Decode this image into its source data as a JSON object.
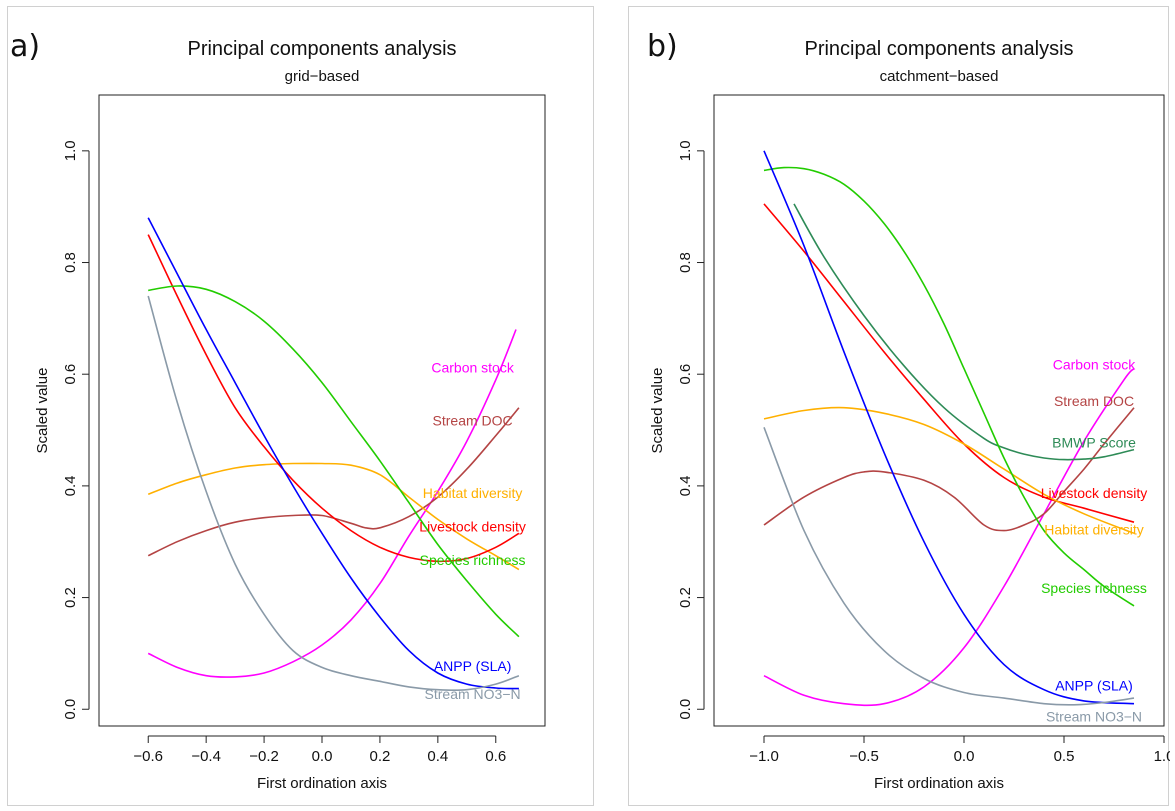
{
  "panels": [
    {
      "letter": "a)"
    },
    {
      "letter": "b)"
    }
  ],
  "chart_data": [
    {
      "type": "line",
      "title": "Principal components analysis",
      "subtitle": "grid−based",
      "xlabel": "First ordination axis",
      "ylabel": "Scaled value",
      "xlim": [
        -0.77,
        0.77
      ],
      "ylim": [
        -0.03,
        1.1
      ],
      "xticks": [
        -0.6,
        -0.4,
        -0.2,
        0.0,
        0.2,
        0.4,
        0.6
      ],
      "xtick_labels": [
        "−0.6",
        "−0.4",
        "−0.2",
        "0.0",
        "0.2",
        "0.4",
        "0.6"
      ],
      "yticks": [
        0.0,
        0.2,
        0.4,
        0.6,
        0.8,
        1.0
      ],
      "ytick_labels": [
        "0.0",
        "0.2",
        "0.4",
        "0.6",
        "0.8",
        "1.0"
      ],
      "series": [
        {
          "name": "Carbon stock",
          "color": "#ff00ff",
          "label_at": [
            0.52,
            0.61
          ],
          "x": [
            -0.6,
            -0.5,
            -0.4,
            -0.3,
            -0.2,
            -0.1,
            0.0,
            0.1,
            0.2,
            0.3,
            0.4,
            0.5,
            0.6,
            0.67
          ],
          "y": [
            0.1,
            0.075,
            0.06,
            0.058,
            0.065,
            0.085,
            0.115,
            0.16,
            0.225,
            0.31,
            0.39,
            0.48,
            0.59,
            0.68
          ]
        },
        {
          "name": "Stream DOC",
          "color": "#b44444",
          "label_at": [
            0.52,
            0.515
          ],
          "x": [
            -0.6,
            -0.5,
            -0.4,
            -0.3,
            -0.2,
            -0.1,
            0.0,
            0.1,
            0.15,
            0.2,
            0.3,
            0.4,
            0.5,
            0.6,
            0.68
          ],
          "y": [
            0.275,
            0.3,
            0.32,
            0.335,
            0.343,
            0.347,
            0.347,
            0.333,
            0.325,
            0.325,
            0.345,
            0.38,
            0.43,
            0.49,
            0.54
          ]
        },
        {
          "name": "Habitat diversity",
          "color": "#ffb000",
          "label_at": [
            0.52,
            0.385
          ],
          "x": [
            -0.6,
            -0.5,
            -0.4,
            -0.3,
            -0.2,
            -0.1,
            0.0,
            0.1,
            0.2,
            0.3,
            0.4,
            0.5,
            0.6,
            0.68
          ],
          "y": [
            0.385,
            0.405,
            0.42,
            0.432,
            0.438,
            0.44,
            0.44,
            0.437,
            0.42,
            0.38,
            0.34,
            0.305,
            0.275,
            0.25
          ]
        },
        {
          "name": "Livestock density",
          "color": "#ff0000",
          "label_at": [
            0.52,
            0.325
          ],
          "x": [
            -0.6,
            -0.5,
            -0.4,
            -0.3,
            -0.2,
            -0.1,
            0.0,
            0.1,
            0.2,
            0.3,
            0.4,
            0.5,
            0.6,
            0.68
          ],
          "y": [
            0.85,
            0.74,
            0.635,
            0.54,
            0.47,
            0.41,
            0.36,
            0.32,
            0.29,
            0.272,
            0.265,
            0.27,
            0.29,
            0.315
          ]
        },
        {
          "name": "Species richness",
          "color": "#22cc00",
          "label_at": [
            0.52,
            0.265
          ],
          "x": [
            -0.6,
            -0.5,
            -0.4,
            -0.3,
            -0.2,
            -0.1,
            0.0,
            0.1,
            0.2,
            0.3,
            0.4,
            0.5,
            0.6,
            0.68
          ],
          "y": [
            0.75,
            0.758,
            0.752,
            0.73,
            0.695,
            0.645,
            0.585,
            0.515,
            0.445,
            0.37,
            0.295,
            0.23,
            0.17,
            0.13
          ]
        },
        {
          "name": "ANPP (SLA)",
          "color": "#0000ff",
          "label_at": [
            0.52,
            0.075
          ],
          "x": [
            -0.6,
            -0.5,
            -0.4,
            -0.3,
            -0.2,
            -0.1,
            0.0,
            0.1,
            0.2,
            0.3,
            0.4,
            0.5,
            0.6,
            0.68
          ],
          "y": [
            0.88,
            0.78,
            0.68,
            0.585,
            0.49,
            0.4,
            0.315,
            0.235,
            0.165,
            0.105,
            0.065,
            0.045,
            0.038,
            0.037
          ]
        },
        {
          "name": "Stream NO3−N",
          "color": "#8a9aa8",
          "label_at": [
            0.52,
            0.025
          ],
          "x": [
            -0.6,
            -0.5,
            -0.4,
            -0.3,
            -0.2,
            -0.1,
            0.0,
            0.1,
            0.2,
            0.3,
            0.4,
            0.5,
            0.6,
            0.68
          ],
          "y": [
            0.74,
            0.55,
            0.39,
            0.26,
            0.17,
            0.105,
            0.075,
            0.06,
            0.05,
            0.04,
            0.035,
            0.035,
            0.045,
            0.06
          ]
        }
      ]
    },
    {
      "type": "line",
      "title": "Principal components analysis",
      "subtitle": "catchment−based",
      "xlabel": "First ordination axis",
      "ylabel": "Scaled value",
      "xlim": [
        -1.25,
        1.0
      ],
      "ylim": [
        -0.03,
        1.1
      ],
      "xticks": [
        -1.0,
        -0.5,
        0.0,
        0.5,
        1.0
      ],
      "xtick_labels": [
        "−1.0",
        "−0.5",
        "0.0",
        "0.5",
        "1.0"
      ],
      "yticks": [
        0.0,
        0.2,
        0.4,
        0.6,
        0.8,
        1.0
      ],
      "ytick_labels": [
        "0.0",
        "0.2",
        "0.4",
        "0.6",
        "0.8",
        "1.0"
      ],
      "series": [
        {
          "name": "Carbon stock",
          "color": "#ff00ff",
          "label_at": [
            0.65,
            0.615
          ],
          "x": [
            -1.0,
            -0.8,
            -0.6,
            -0.4,
            -0.2,
            0.0,
            0.2,
            0.4,
            0.6,
            0.8,
            0.85
          ],
          "y": [
            0.06,
            0.025,
            0.01,
            0.01,
            0.04,
            0.11,
            0.22,
            0.35,
            0.48,
            0.59,
            0.61
          ]
        },
        {
          "name": "Stream DOC",
          "color": "#b44444",
          "label_at": [
            0.65,
            0.55
          ],
          "x": [
            -1.0,
            -0.8,
            -0.6,
            -0.5,
            -0.4,
            -0.2,
            -0.05,
            0.1,
            0.2,
            0.3,
            0.4,
            0.5,
            0.6,
            0.7,
            0.85
          ],
          "y": [
            0.33,
            0.38,
            0.415,
            0.425,
            0.425,
            0.41,
            0.38,
            0.33,
            0.32,
            0.33,
            0.35,
            0.39,
            0.43,
            0.475,
            0.54
          ]
        },
        {
          "name": "BMWP Score",
          "color": "#2e8b57",
          "label_at": [
            0.65,
            0.475
          ],
          "x": [
            -0.85,
            -0.7,
            -0.5,
            -0.3,
            -0.1,
            0.1,
            0.2,
            0.3,
            0.4,
            0.5,
            0.6,
            0.7,
            0.85
          ],
          "y": [
            0.905,
            0.81,
            0.705,
            0.615,
            0.54,
            0.485,
            0.468,
            0.457,
            0.45,
            0.447,
            0.448,
            0.452,
            0.465
          ]
        },
        {
          "name": "Livestock density",
          "color": "#ff0000",
          "label_at": [
            0.65,
            0.385
          ],
          "x": [
            -1.0,
            -0.8,
            -0.6,
            -0.4,
            -0.2,
            0.0,
            0.2,
            0.4,
            0.6,
            0.85
          ],
          "y": [
            0.905,
            0.82,
            0.73,
            0.64,
            0.555,
            0.475,
            0.415,
            0.38,
            0.36,
            0.335
          ]
        },
        {
          "name": "Habitat diversity",
          "color": "#ffb000",
          "label_at": [
            0.65,
            0.32
          ],
          "x": [
            -1.0,
            -0.8,
            -0.6,
            -0.4,
            -0.2,
            0.0,
            0.2,
            0.4,
            0.6,
            0.85
          ],
          "y": [
            0.52,
            0.535,
            0.54,
            0.53,
            0.51,
            0.475,
            0.43,
            0.385,
            0.35,
            0.315
          ]
        },
        {
          "name": "Species richness",
          "color": "#22cc00",
          "label_at": [
            0.65,
            0.215
          ],
          "x": [
            -1.0,
            -0.9,
            -0.8,
            -0.7,
            -0.6,
            -0.5,
            -0.4,
            -0.3,
            -0.2,
            -0.1,
            0.0,
            0.1,
            0.2,
            0.3,
            0.4,
            0.5,
            0.6,
            0.7,
            0.85
          ],
          "y": [
            0.965,
            0.97,
            0.968,
            0.958,
            0.94,
            0.91,
            0.87,
            0.82,
            0.76,
            0.69,
            0.61,
            0.53,
            0.45,
            0.38,
            0.32,
            0.28,
            0.25,
            0.22,
            0.185
          ]
        },
        {
          "name": "ANPP (SLA)",
          "color": "#0000ff",
          "label_at": [
            0.65,
            0.04
          ],
          "x": [
            -1.0,
            -0.8,
            -0.6,
            -0.4,
            -0.2,
            0.0,
            0.2,
            0.4,
            0.6,
            0.85
          ],
          "y": [
            1.0,
            0.83,
            0.64,
            0.46,
            0.3,
            0.17,
            0.08,
            0.035,
            0.015,
            0.01
          ]
        },
        {
          "name": "Stream NO3−N",
          "color": "#8a9aa8",
          "label_at": [
            0.65,
            -0.015
          ],
          "x": [
            -1.0,
            -0.8,
            -0.6,
            -0.4,
            -0.2,
            0.0,
            0.2,
            0.4,
            0.55,
            0.7,
            0.85
          ],
          "y": [
            0.505,
            0.32,
            0.19,
            0.105,
            0.055,
            0.03,
            0.02,
            0.01,
            0.008,
            0.012,
            0.02
          ]
        }
      ]
    }
  ]
}
